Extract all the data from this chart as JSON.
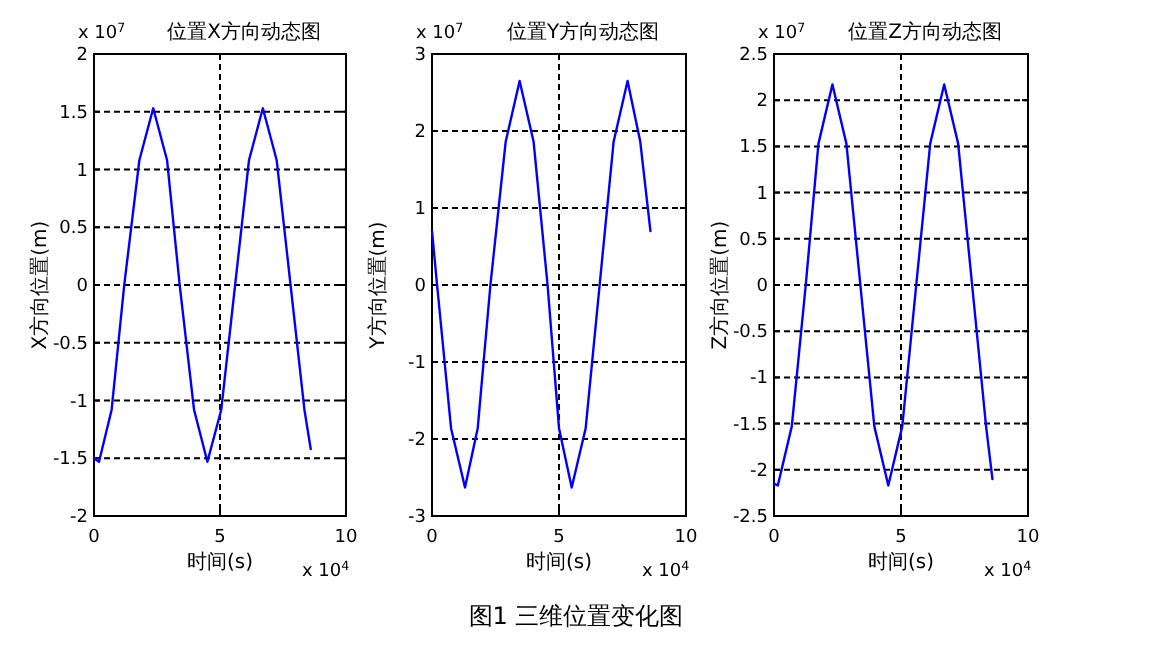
{
  "chart_data": [
    {
      "type": "line",
      "title": "位置X方向动态图",
      "xlabel": "时间(s)",
      "ylabel": "X方向位置(m)",
      "grid": true,
      "xlim": [
        0,
        10
      ],
      "xticks": [
        0,
        5,
        10
      ],
      "ylim": [
        -2,
        2
      ],
      "yticks": [
        -2,
        -1.5,
        -1,
        -0.5,
        0,
        0.5,
        1,
        1.5,
        2
      ],
      "x": [
        0,
        0.2,
        0.7,
        1.2,
        1.8,
        2.35,
        2.9,
        3.4,
        3.97,
        4.5,
        5.05,
        5.6,
        6.15,
        6.7,
        7.25,
        7.8,
        8.35,
        8.6
      ],
      "series": [
        {
          "color": "#0000ff",
          "values": [
            -1.5,
            -1.53,
            -1.08,
            0,
            1.08,
            1.53,
            1.08,
            0,
            -1.08,
            -1.53,
            -1.08,
            0,
            1.08,
            1.53,
            1.08,
            0,
            -1.08,
            -1.42
          ]
        }
      ],
      "annotations": [
        "x 10$^{7}$",
        "x 10$^{4}$",
        "图1 三维位置变化图"
      ]
    },
    {
      "type": "line",
      "title": "位置Y方向动态图",
      "xlabel": "时间(s)",
      "ylabel": "Y方向位置(m)",
      "grid": true,
      "xlim": [
        0,
        10
      ],
      "xticks": [
        0,
        5,
        10
      ],
      "ylim": [
        -3,
        3
      ],
      "yticks": [
        -3,
        -2,
        -1,
        0,
        1,
        2,
        3
      ],
      "x": [
        0,
        0.2,
        0.75,
        1.3,
        1.8,
        2.3,
        2.9,
        3.45,
        4.0,
        4.55,
        5.0,
        5.5,
        6.05,
        6.6,
        7.15,
        7.7,
        8.2,
        8.6
      ],
      "series": [
        {
          "color": "#0000ff",
          "values": [
            0.7,
            0,
            -1.86,
            -2.63,
            -1.86,
            0,
            1.86,
            2.65,
            1.86,
            0,
            -1.86,
            -2.63,
            -1.86,
            0,
            1.86,
            2.65,
            1.86,
            0.7
          ]
        }
      ],
      "annotations": [
        "x 10$^{7}$",
        "x 10$^{4}$"
      ]
    },
    {
      "type": "line",
      "title": "位置Z方向动态图",
      "xlabel": "时间(s)",
      "ylabel": "Z方向位置(m)",
      "grid": true,
      "xlim": [
        0,
        10
      ],
      "xticks": [
        0,
        5,
        10
      ],
      "ylim": [
        -2.5,
        2.5
      ],
      "yticks": [
        -2.5,
        -2,
        -1.5,
        -1,
        -0.5,
        0,
        0.5,
        1,
        1.5,
        2,
        2.5
      ],
      "x": [
        0,
        0.15,
        0.7,
        1.25,
        1.75,
        2.3,
        2.85,
        3.4,
        3.95,
        4.5,
        5.05,
        5.6,
        6.15,
        6.7,
        7.25,
        7.8,
        8.35,
        8.6
      ],
      "series": [
        {
          "color": "#0000ff",
          "values": [
            -2.15,
            -2.17,
            -1.53,
            0,
            1.53,
            2.17,
            1.53,
            0,
            -1.53,
            -2.17,
            -1.53,
            0,
            1.53,
            2.17,
            1.53,
            0,
            -1.53,
            -2.1
          ]
        }
      ],
      "annotations": [
        "x 10$^{7}$",
        "x 10$^{4}$"
      ]
    }
  ]
}
